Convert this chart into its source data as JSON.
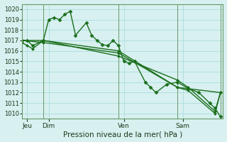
{
  "bg_color": "#d8f0f0",
  "grid_color": "#aadddd",
  "line_color": "#1a6e1a",
  "marker_color": "#1a6e1a",
  "xlabel": "Pression niveau de la mer( hPa )",
  "ylim": [
    1009.5,
    1020.5
  ],
  "yticks": [
    1010,
    1011,
    1012,
    1013,
    1014,
    1015,
    1016,
    1017,
    1018,
    1019,
    1020
  ],
  "xlim": [
    0,
    75
  ],
  "day_positions": [
    2,
    10,
    38,
    60
  ],
  "day_vlines": [
    0,
    8,
    36,
    58,
    74
  ],
  "day_labels": [
    "Jeu",
    "Dim",
    "Ven",
    "Sam"
  ],
  "series": [
    [
      0,
      1017.0,
      2,
      1017.0,
      4,
      1016.5,
      8,
      1017.0,
      10,
      1019.0,
      12,
      1019.2,
      14,
      1019.0,
      16,
      1019.5,
      18,
      1019.8,
      20,
      1017.5,
      24,
      1018.7,
      26,
      1017.5,
      28,
      1017.0,
      30,
      1016.6,
      32,
      1016.5,
      34,
      1017.0,
      36,
      1016.5,
      38,
      1015.0,
      40,
      1014.8,
      42,
      1015.0,
      46,
      1013.0,
      48,
      1012.5,
      50,
      1012.0,
      54,
      1012.8,
      58,
      1013.0,
      62,
      1012.4,
      66,
      1012.0,
      70,
      1011.0,
      72,
      1010.5,
      74,
      1009.7
    ],
    [
      0,
      1016.8,
      2,
      1016.5,
      4,
      1016.2,
      8,
      1017.0,
      36,
      1015.5,
      58,
      1013.2,
      62,
      1012.5,
      72,
      1010.2,
      74,
      1012.0
    ],
    [
      0,
      1017.0,
      8,
      1017.0,
      36,
      1016.0,
      58,
      1012.5,
      74,
      1012.0
    ],
    [
      0,
      1017.0,
      8,
      1016.8,
      36,
      1015.8,
      58,
      1012.5,
      62,
      1012.2,
      72,
      1010.0,
      74,
      1012.0
    ]
  ]
}
